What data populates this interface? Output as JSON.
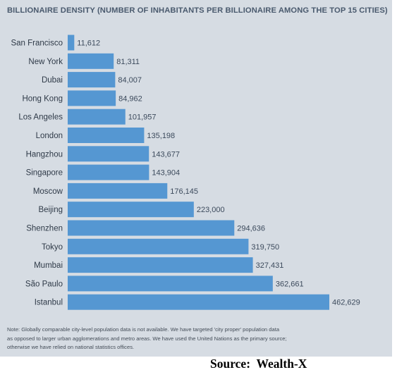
{
  "chart_data": {
    "type": "bar",
    "orientation": "horizontal",
    "title": "BILLIONAIRE DENSITY (NUMBER OF INHABITANTS PER BILLIONAIRE AMONG THE TOP 15 CITIES)",
    "categories": [
      "San Francisco",
      "New York",
      "Dubai",
      "Hong Kong",
      "Los Angeles",
      "London",
      "Hangzhou",
      "Singapore",
      "Moscow",
      "Beijing",
      "Shenzhen",
      "Tokyo",
      "Mumbai",
      "São Paulo",
      "Istanbul"
    ],
    "values": [
      11612,
      81311,
      84007,
      84962,
      101957,
      135198,
      143677,
      143904,
      176145,
      223000,
      294636,
      319750,
      327431,
      362661,
      462629
    ],
    "value_labels": [
      "11,612",
      "81,311",
      "84,007",
      "84,962",
      "101,957",
      "135,198",
      "143,677",
      "143,904",
      "176,145",
      "223,000",
      "294,636",
      "319,750",
      "327,431",
      "362,661",
      "462,629"
    ],
    "xlim": [
      0,
      462629
    ],
    "bar_color": "#5597d2",
    "grid": false,
    "legend": "none"
  },
  "note": {
    "lines": [
      "Note: Globally comparable city-level population data is not available. We have targeted 'city proper' population data",
      "as opposed to larger urban agglomerations and metro areas. We have used the United Nations as the primary source;",
      "otherwise we have relied on national statistics offices."
    ]
  },
  "source": "Source:  Wealth-X"
}
